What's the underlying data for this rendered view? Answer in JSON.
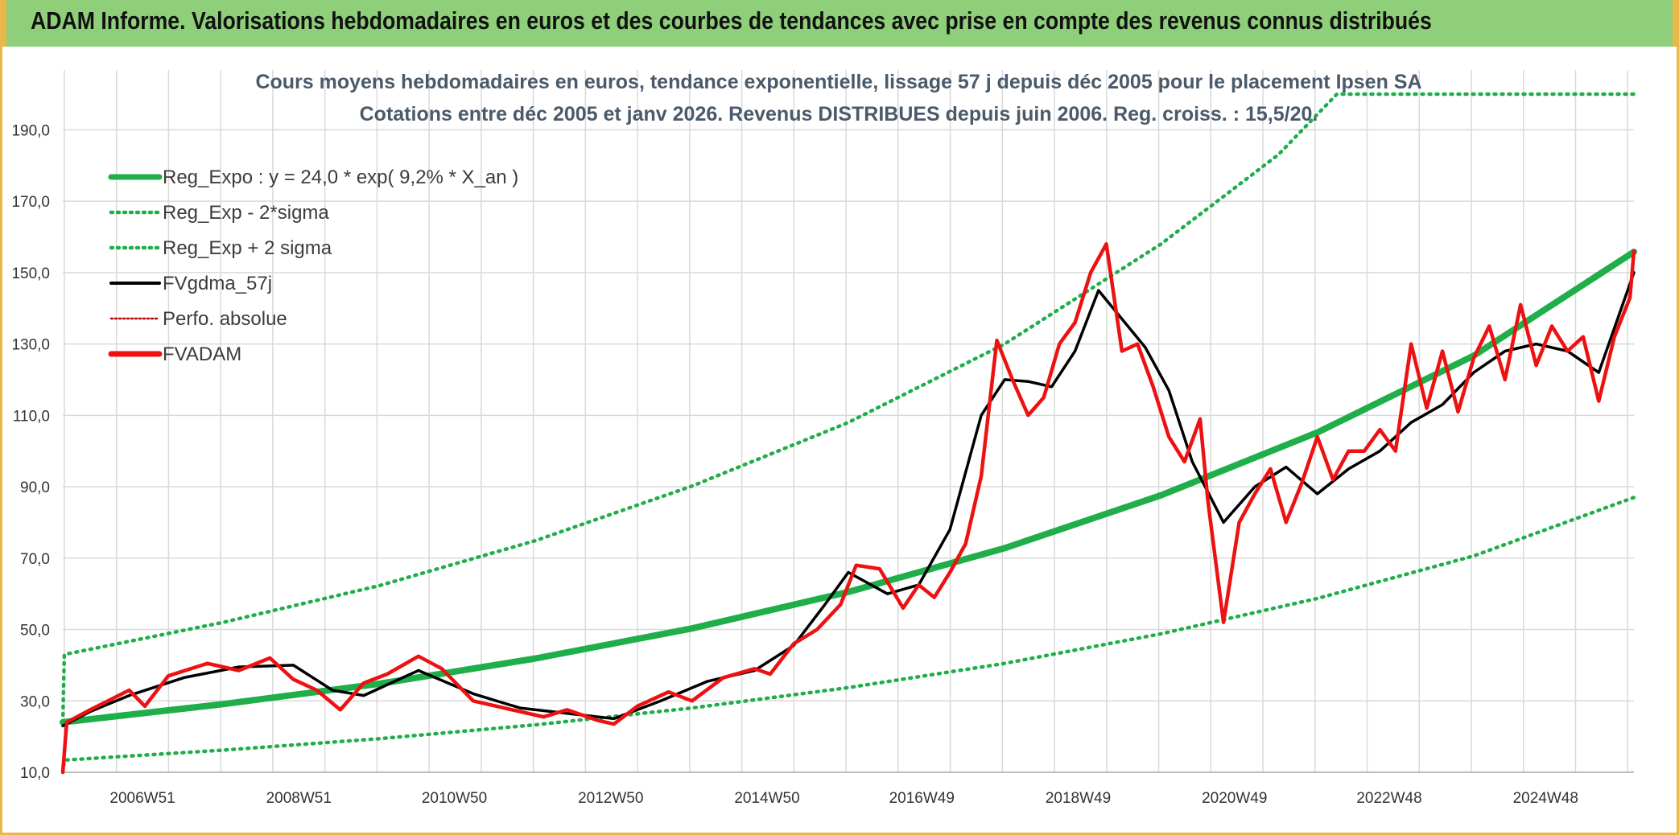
{
  "banner": {
    "title": "ADAM Informe. Valorisations hebdomadaires en euros et des courbes de tendances avec prise en compte des revenus connus distribués"
  },
  "colors": {
    "banner_bg": "#8fcf7a",
    "frame": "#e8b84b",
    "reg_expo": "#1fae4a",
    "sigma_bands": "#1fae4a",
    "fvgdma": "#000000",
    "perfo_absolue": "#c00000",
    "fvadam": "#ee1111",
    "grid": "#d9d9d9"
  },
  "chart_data": {
    "type": "line",
    "title_line1": "Cours moyens hebdomadaires en euros, tendance exponentielle, lissage 57 j depuis déc 2005 pour le placement Ipsen SA",
    "title_line2": "Cotations entre déc 2005 et janv 2026. Revenus DISTRIBUES depuis juin 2006. Reg. croiss. : 15,5/20.",
    "x_range": [
      2005.95,
      2026.05
    ],
    "ylim": [
      10,
      200
    ],
    "y_ticks": [
      10,
      30,
      50,
      70,
      90,
      110,
      130,
      150,
      170,
      190
    ],
    "y_tick_labels": [
      "10,0",
      "30,0",
      "50,0",
      "70,0",
      "90,0",
      "110,0",
      "130,0",
      "150,0",
      "170,0",
      "190,0"
    ],
    "x_ticks": [
      2006.97,
      2008.97,
      2010.96,
      2012.96,
      2014.96,
      2016.94,
      2018.94,
      2020.94,
      2022.92,
      2024.92
    ],
    "x_tick_labels": [
      "2006W51",
      "2008W51",
      "2010W50",
      "2012W50",
      "2014W50",
      "2016W49",
      "2018W49",
      "2020W49",
      "2022W48",
      "2024W48"
    ],
    "grid": true,
    "legend_position": "top-left",
    "legend": [
      {
        "label": "Reg_Expo : y = 24,0 * exp( 9,2% *  X_an )",
        "style": "solid-thick",
        "color": "#1fae4a"
      },
      {
        "label": "Reg_Exp - 2*sigma",
        "style": "dotted",
        "color": "#1fae4a"
      },
      {
        "label": "Reg_Exp + 2 sigma",
        "style": "dotted",
        "color": "#1fae4a"
      },
      {
        "label": "FVgdma_57j",
        "style": "solid",
        "color": "#000000"
      },
      {
        "label": "Perfo. absolue",
        "style": "dotted-thin",
        "color": "#c00000"
      },
      {
        "label": "FVADAM",
        "style": "solid-thick",
        "color": "#ee1111"
      }
    ],
    "series": [
      {
        "name": "Reg_Expo : y = 24,0 * exp( 9,2% *  X_an )",
        "x": [
          2005.95,
          2008,
          2010,
          2012,
          2014,
          2016,
          2018,
          2020,
          2022,
          2024,
          2026.05
        ],
        "values": [
          24.0,
          29.1,
          34.8,
          41.9,
          50.3,
          60.5,
          72.8,
          87.6,
          105.2,
          126.7,
          155.8
        ]
      },
      {
        "name": "Reg_Exp - 2*sigma",
        "x": [
          2005.95,
          2005.97,
          2008,
          2010,
          2012,
          2014,
          2016,
          2018,
          2020,
          2022,
          2024,
          2026.05
        ],
        "values": [
          10.0,
          13.4,
          16.2,
          19.4,
          23.3,
          28.0,
          33.7,
          40.5,
          48.8,
          58.7,
          70.6,
          87.0
        ]
      },
      {
        "name": "Reg_Exp + 2 sigma",
        "x": [
          2005.95,
          2005.97,
          2008,
          2010,
          2012,
          2014,
          2016,
          2018,
          2020,
          2021.5,
          2022.25,
          2026.05
        ],
        "values": [
          24.0,
          43.0,
          52.0,
          62.3,
          74.9,
          90.2,
          108.0,
          130.0,
          158.0,
          183.0,
          200.0,
          200.0
        ]
      },
      {
        "name": "FVgdma_57j",
        "x": [
          2005.95,
          2006.3,
          2006.8,
          2007.5,
          2008.2,
          2008.9,
          2009.4,
          2009.8,
          2010.5,
          2011.2,
          2011.8,
          2012.4,
          2013.0,
          2013.6,
          2014.2,
          2014.8,
          2015.3,
          2015.7,
          2016.0,
          2016.5,
          2016.9,
          2017.3,
          2017.7,
          2018.0,
          2018.3,
          2018.6,
          2018.9,
          2019.2,
          2019.5,
          2019.8,
          2020.1,
          2020.4,
          2020.8,
          2021.2,
          2021.6,
          2022.0,
          2022.4,
          2022.8,
          2023.2,
          2023.6,
          2024.0,
          2024.4,
          2024.8,
          2025.2,
          2025.6,
          2026.05
        ],
        "values": [
          23.0,
          27.0,
          31.5,
          36.5,
          39.5,
          40.0,
          33.0,
          31.5,
          38.5,
          32.0,
          28.0,
          26.5,
          25.0,
          30.0,
          35.5,
          38.5,
          45.5,
          57.0,
          66.0,
          60.0,
          62.5,
          78.0,
          110.0,
          120.0,
          119.5,
          118.0,
          128.0,
          145.0,
          137.0,
          129.0,
          117.0,
          97.0,
          80.0,
          90.0,
          95.5,
          88.0,
          95.0,
          100.0,
          108.0,
          113.0,
          122.0,
          128.0,
          130.0,
          128.0,
          122.0,
          150.0
        ]
      },
      {
        "name": "FVADAM",
        "x": [
          2005.95,
          2006.0,
          2006.3,
          2006.8,
          2007.0,
          2007.3,
          2007.8,
          2008.2,
          2008.6,
          2008.9,
          2009.2,
          2009.5,
          2009.8,
          2010.1,
          2010.5,
          2010.8,
          2011.2,
          2011.5,
          2011.8,
          2012.1,
          2012.4,
          2012.8,
          2013.0,
          2013.3,
          2013.7,
          2014.0,
          2014.4,
          2014.8,
          2015.0,
          2015.3,
          2015.6,
          2015.9,
          2016.1,
          2016.4,
          2016.7,
          2016.9,
          2017.1,
          2017.3,
          2017.5,
          2017.7,
          2017.9,
          2018.1,
          2018.3,
          2018.5,
          2018.7,
          2018.9,
          2019.1,
          2019.3,
          2019.5,
          2019.7,
          2019.9,
          2020.1,
          2020.3,
          2020.5,
          2020.6,
          2020.8,
          2021.0,
          2021.2,
          2021.4,
          2021.6,
          2021.8,
          2022.0,
          2022.2,
          2022.4,
          2022.6,
          2022.8,
          2023.0,
          2023.2,
          2023.4,
          2023.6,
          2023.8,
          2024.0,
          2024.2,
          2024.4,
          2024.6,
          2024.8,
          2025.0,
          2025.2,
          2025.4,
          2025.6,
          2025.8,
          2026.0,
          2026.05
        ],
        "values": [
          10.0,
          24.0,
          27.5,
          33.0,
          28.5,
          37.0,
          40.5,
          38.5,
          42.0,
          36.0,
          33.0,
          27.5,
          35.0,
          37.5,
          42.5,
          39.0,
          30.0,
          28.5,
          27.0,
          25.5,
          27.5,
          24.5,
          23.5,
          28.5,
          32.5,
          30.0,
          36.5,
          39.0,
          37.5,
          46.0,
          50.0,
          57.0,
          68.0,
          67.0,
          56.0,
          62.5,
          59.0,
          66.0,
          74.0,
          93.0,
          131.0,
          120.0,
          110.0,
          115.0,
          130.0,
          136.0,
          150.0,
          158.0,
          128.0,
          130.0,
          118.0,
          104.0,
          97.0,
          109.0,
          86.0,
          52.0,
          80.0,
          88.0,
          95.0,
          80.0,
          91.0,
          104.0,
          92.0,
          100.0,
          100.0,
          106.0,
          100.0,
          130.0,
          112.0,
          128.0,
          111.0,
          126.0,
          135.0,
          120.0,
          141.0,
          124.0,
          135.0,
          128.0,
          132.0,
          114.0,
          132.0,
          143.0,
          156.0
        ]
      }
    ]
  }
}
